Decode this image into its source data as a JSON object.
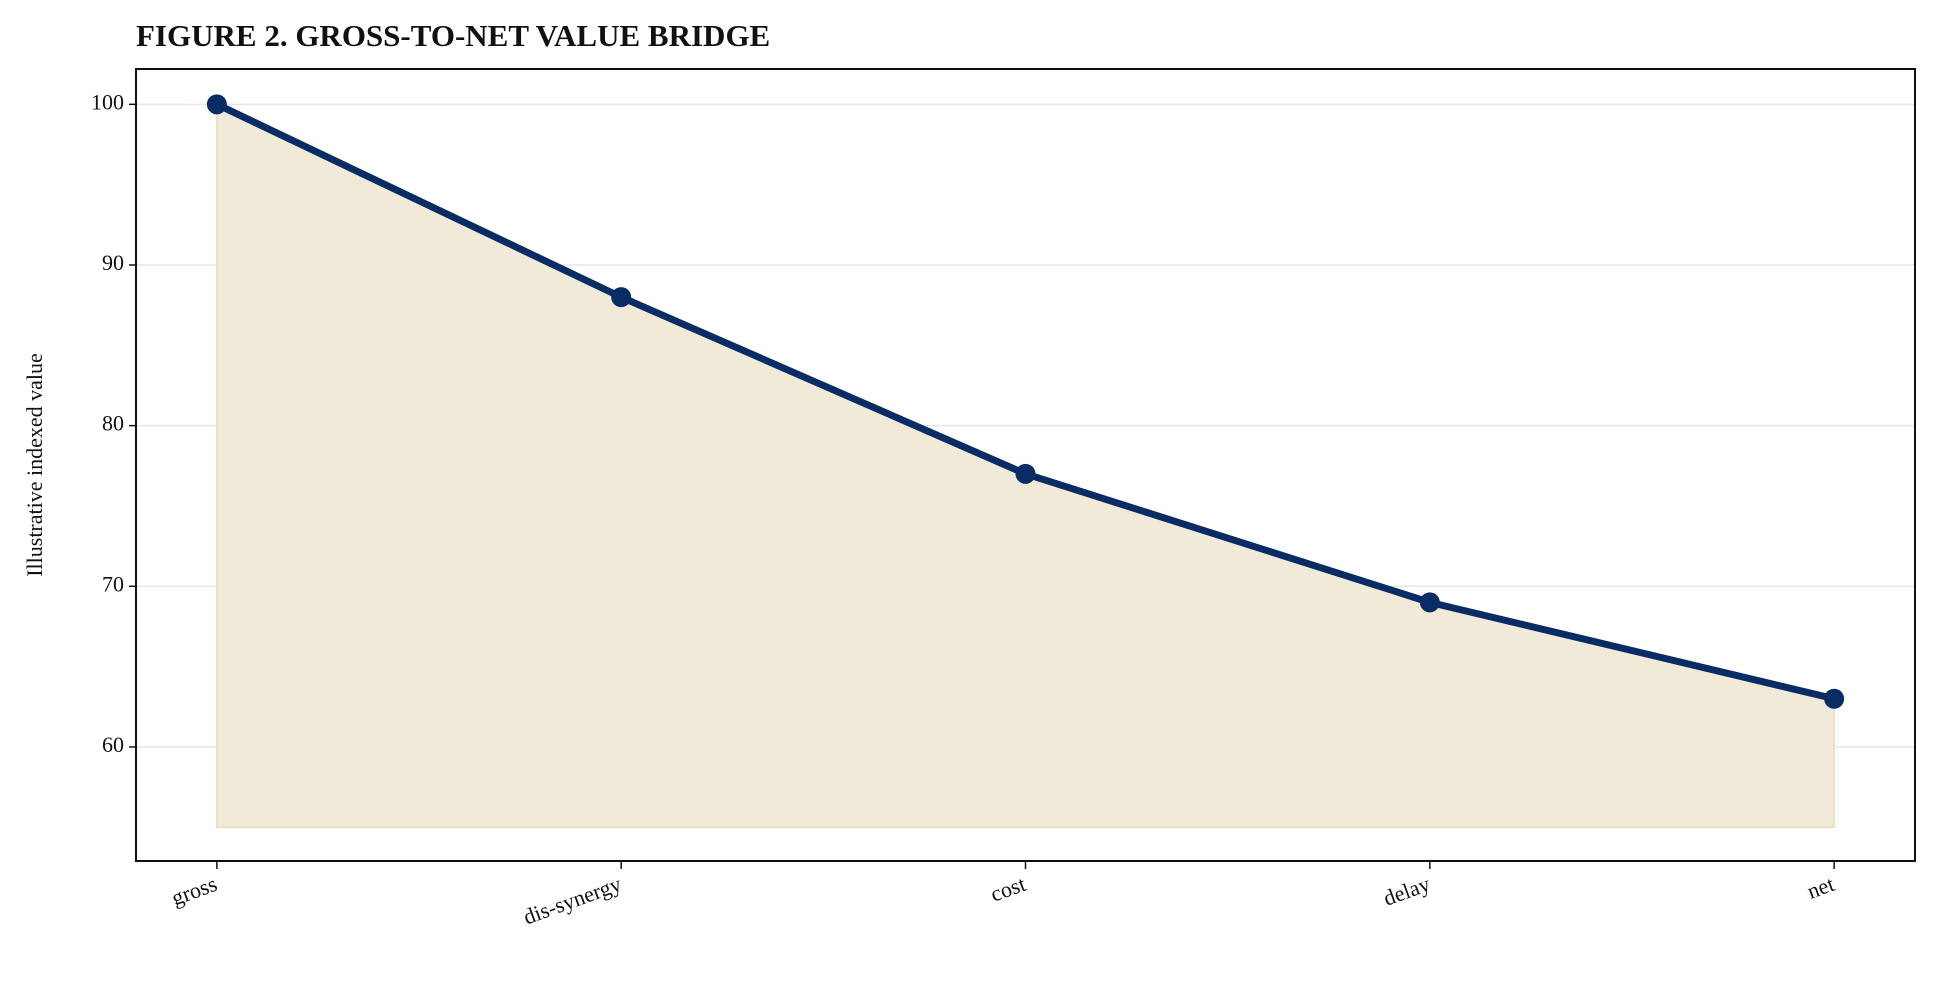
{
  "chart_data": {
    "type": "area-line",
    "title": "FIGURE 2. GROSS-TO-NET VALUE BRIDGE",
    "y_label": "Illustrative indexed value",
    "categories": [
      "gross",
      "dis-synergy",
      "cost",
      "delay",
      "net"
    ],
    "values": [
      100,
      88,
      77,
      69,
      63
    ],
    "area_baseline": 55,
    "color": "#0a2c64",
    "fill_color": "#f2ead9",
    "ylim": [
      52.9,
      102.2
    ],
    "yticks": [
      60,
      70,
      80,
      90,
      100
    ],
    "grid": true
  }
}
